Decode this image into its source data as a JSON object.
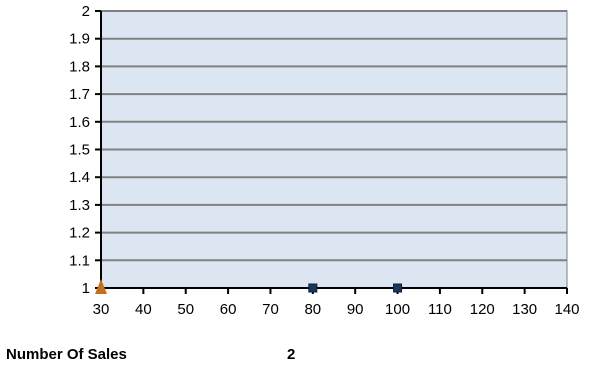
{
  "chart_data": {
    "type": "scatter",
    "xlim": [
      30,
      140
    ],
    "ylim": [
      1,
      2
    ],
    "x_ticks": [
      30,
      40,
      50,
      60,
      70,
      80,
      90,
      100,
      110,
      120,
      130,
      140
    ],
    "y_ticks": [
      2,
      1.9,
      1.8,
      1.7,
      1.6,
      1.5,
      1.4,
      1.3,
      1.2,
      1.1,
      1
    ],
    "grid": true,
    "plot_background": "#dce6f2",
    "series": [
      {
        "marker": "square",
        "color": "#17375e",
        "points": [
          {
            "x": 80,
            "y": 1
          },
          {
            "x": 100,
            "y": 1
          }
        ]
      },
      {
        "marker": "triangle",
        "color": "#c0701f",
        "points": [
          {
            "x": 30,
            "y": 1
          }
        ]
      }
    ]
  },
  "footer": {
    "label": "Number Of Sales",
    "value": "2"
  }
}
